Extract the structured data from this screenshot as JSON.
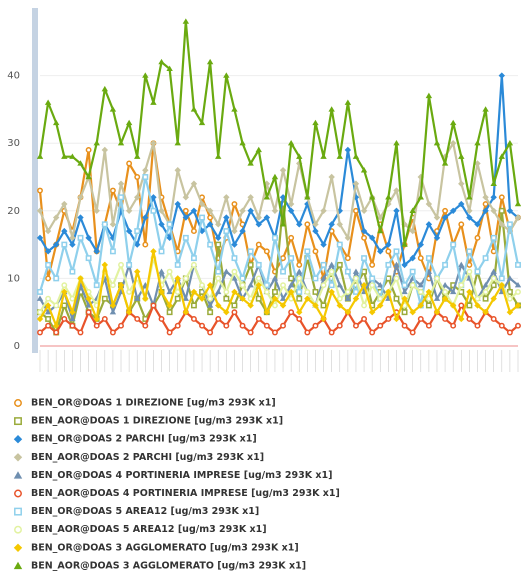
{
  "chart_data": {
    "type": "line",
    "ylim": [
      0,
      50
    ],
    "yticks": [
      0,
      10,
      20,
      30,
      40
    ],
    "grid": true,
    "series": [
      {
        "name": "BEN_OR@DOAS 1 DIREZIONE [ug/m3 293K x1]",
        "color": "#e8901c",
        "marker": "circle",
        "values": [
          23,
          10,
          15,
          20,
          17,
          22,
          29,
          14,
          18,
          23,
          20,
          27,
          25,
          15,
          30,
          22,
          18,
          14,
          20,
          17,
          22,
          19,
          13,
          16,
          21,
          18,
          12,
          15,
          14,
          11,
          13,
          16,
          12,
          18,
          14,
          10,
          17,
          15,
          13,
          20,
          16,
          12,
          18,
          14,
          11,
          15,
          19,
          13,
          10,
          17,
          20,
          15,
          18,
          12,
          16,
          21,
          14,
          22,
          17,
          19
        ]
      },
      {
        "name": "BEN_AOR@DOAS 1 DIREZIONE [ug/m3 293K x1]",
        "color": "#9aab3a",
        "marker": "square",
        "values": [
          5,
          4,
          2,
          6,
          3,
          8,
          5,
          4,
          7,
          6,
          9,
          5,
          7,
          4,
          6,
          8,
          5,
          7,
          10,
          6,
          8,
          5,
          15,
          7,
          6,
          9,
          12,
          7,
          5,
          8,
          21,
          10,
          7,
          13,
          8,
          6,
          10,
          12,
          7,
          9,
          11,
          6,
          8,
          10,
          7,
          5,
          9,
          8,
          6,
          10,
          7,
          9,
          8,
          6,
          11,
          7,
          9,
          20,
          8,
          6
        ]
      },
      {
        "name": "BEN_OR@DOAS 2 PARCHI [ug/m3 293K x1]",
        "color": "#2b8ad8",
        "marker": "diamond",
        "values": [
          16,
          14,
          15,
          17,
          15,
          19,
          16,
          14,
          18,
          16,
          20,
          17,
          15,
          19,
          22,
          18,
          16,
          21,
          19,
          20,
          17,
          18,
          16,
          19,
          15,
          17,
          20,
          18,
          19,
          16,
          22,
          20,
          18,
          21,
          17,
          15,
          18,
          20,
          29,
          22,
          17,
          16,
          14,
          15,
          20,
          12,
          13,
          15,
          18,
          16,
          19,
          20,
          21,
          19,
          18,
          20,
          22,
          40,
          20,
          19
        ]
      },
      {
        "name": "BEN_AOR@DOAS 2 PARCHI [ug/m3 293K x1]",
        "color": "#c8c4a0",
        "marker": "diamond",
        "values": [
          20,
          17,
          19,
          21,
          16,
          22,
          25,
          20,
          29,
          18,
          24,
          20,
          22,
          26,
          30,
          20,
          18,
          26,
          22,
          24,
          21,
          20,
          18,
          22,
          17,
          20,
          22,
          19,
          24,
          20,
          26,
          21,
          27,
          22,
          18,
          20,
          25,
          18,
          16,
          24,
          20,
          22,
          19,
          21,
          23,
          18,
          17,
          25,
          21,
          19,
          28,
          30,
          24,
          20,
          27,
          22,
          20,
          18,
          17,
          19
        ]
      },
      {
        "name": "BEN_OR@DOAS 4 PORTINERIA IMPRESE [ug/m3 293K x1]",
        "color": "#6f8fb0",
        "marker": "triangle",
        "values": [
          7,
          5,
          6,
          8,
          4,
          9,
          6,
          7,
          10,
          5,
          8,
          12,
          7,
          9,
          6,
          11,
          8,
          10,
          7,
          12,
          9,
          6,
          8,
          11,
          10,
          7,
          9,
          12,
          8,
          10,
          7,
          9,
          11,
          8,
          6,
          10,
          12,
          9,
          7,
          11,
          8,
          10,
          9,
          7,
          12,
          8,
          10,
          9,
          11,
          7,
          9,
          8,
          12,
          10,
          7,
          9,
          11,
          8,
          10,
          9
        ]
      },
      {
        "name": "BEN_AOR@DOAS 4 PORTINERIA IMPRESE [ug/m3 293K x1]",
        "color": "#e8532a",
        "marker": "circle",
        "values": [
          2,
          3,
          2,
          4,
          3,
          2,
          5,
          3,
          4,
          2,
          3,
          5,
          4,
          3,
          6,
          4,
          2,
          3,
          5,
          4,
          3,
          2,
          4,
          3,
          5,
          3,
          2,
          4,
          3,
          2,
          3,
          5,
          4,
          2,
          3,
          4,
          2,
          3,
          5,
          3,
          4,
          2,
          3,
          4,
          5,
          3,
          2,
          4,
          3,
          5,
          4,
          3,
          6,
          4,
          3,
          5,
          4,
          3,
          2,
          3
        ]
      },
      {
        "name": "BEN_OR@DOAS 5 AREA12 [ug/m3 293K x1]",
        "color": "#8fd0ec",
        "marker": "square",
        "values": [
          8,
          12,
          10,
          15,
          11,
          16,
          13,
          9,
          18,
          14,
          22,
          12,
          17,
          25,
          20,
          14,
          18,
          12,
          16,
          13,
          19,
          15,
          11,
          17,
          13,
          10,
          14,
          12,
          9,
          16,
          11,
          13,
          8,
          14,
          10,
          12,
          9,
          15,
          11,
          8,
          13,
          10,
          7,
          12,
          14,
          9,
          11,
          6,
          13,
          10,
          12,
          15,
          9,
          14,
          11,
          13,
          16,
          10,
          18,
          12
        ]
      },
      {
        "name": "BEN_AOR@DOAS 5 AREA12 [ug/m3 293K x1]",
        "color": "#e2f2a0",
        "marker": "circle",
        "values": [
          5,
          7,
          6,
          9,
          7,
          10,
          8,
          6,
          11,
          9,
          12,
          8,
          10,
          7,
          13,
          9,
          11,
          8,
          10,
          12,
          9,
          7,
          10,
          8,
          11,
          9,
          7,
          10,
          8,
          6,
          9,
          7,
          10,
          8,
          6,
          9,
          11,
          7,
          8,
          10,
          6,
          9,
          7,
          8,
          10,
          6,
          9,
          8,
          7,
          10,
          8,
          6,
          9,
          11,
          7,
          8,
          10,
          9,
          7,
          8
        ]
      },
      {
        "name": "BEN_OR@DOAS 3 AGGLOMERATO [ug/m3 293K x1]",
        "color": "#f5c800",
        "marker": "diamond",
        "values": [
          4,
          6,
          3,
          8,
          5,
          10,
          7,
          4,
          12,
          6,
          9,
          5,
          11,
          7,
          14,
          8,
          6,
          10,
          5,
          8,
          7,
          9,
          6,
          5,
          8,
          7,
          6,
          9,
          5,
          7,
          6,
          8,
          5,
          7,
          6,
          4,
          8,
          6,
          5,
          7,
          9,
          5,
          6,
          8,
          4,
          7,
          5,
          6,
          8,
          5,
          7,
          6,
          4,
          8,
          6,
          5,
          7,
          9,
          5,
          6
        ]
      },
      {
        "name": "BEN_AOR@DOAS 3 AGGLOMERATO [ug/m3 293K x1]",
        "color": "#6aaa10",
        "marker": "triangle",
        "values": [
          28,
          36,
          33,
          28,
          28,
          27,
          25,
          30,
          38,
          35,
          30,
          33,
          28,
          40,
          36,
          42,
          41,
          30,
          48,
          35,
          33,
          42,
          28,
          40,
          35,
          30,
          27,
          29,
          22,
          25,
          18,
          30,
          28,
          22,
          33,
          28,
          35,
          28,
          36,
          28,
          26,
          22,
          17,
          22,
          30,
          15,
          20,
          22,
          37,
          30,
          27,
          33,
          28,
          22,
          30,
          35,
          24,
          28,
          30,
          21
        ]
      }
    ]
  }
}
